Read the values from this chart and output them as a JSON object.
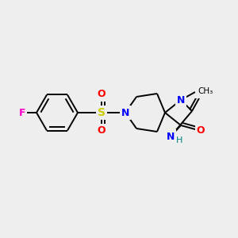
{
  "bg_color": "#eeeeee",
  "bond_color": "#000000",
  "atom_colors": {
    "F": "#ff00cc",
    "S": "#cccc00",
    "N": "#0000ff",
    "O": "#ff0000",
    "H": "#008080",
    "C": "#000000"
  },
  "figsize": [
    3.0,
    3.0
  ],
  "dpi": 100
}
